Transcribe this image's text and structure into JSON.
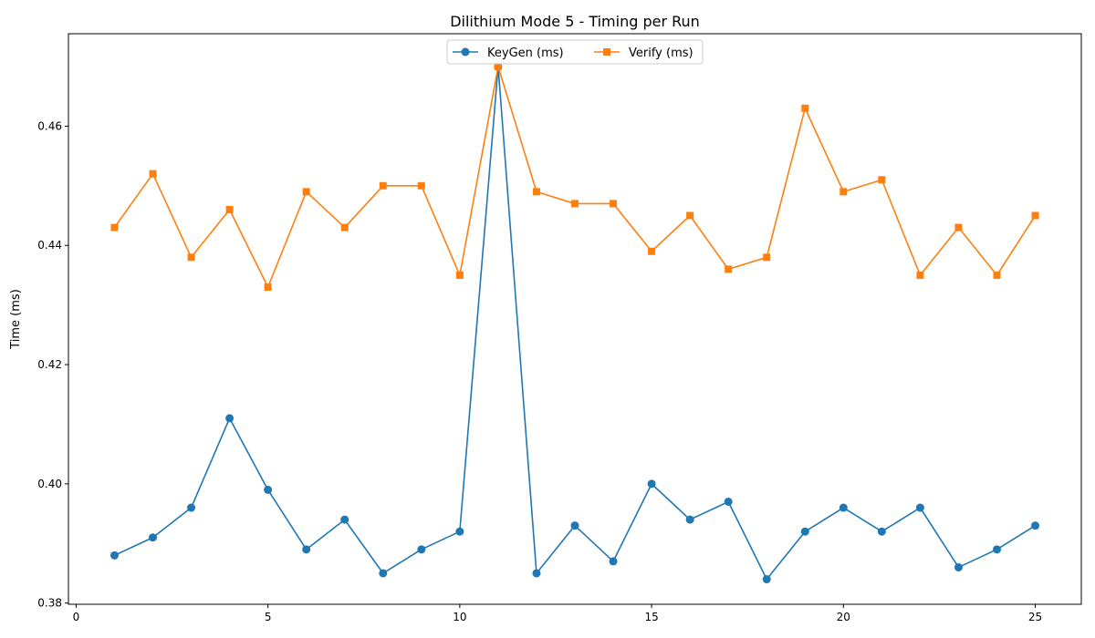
{
  "chart_data": {
    "type": "line",
    "title": "Dilithium Mode 5 - Timing per Run",
    "xlabel": "",
    "ylabel": "Time (ms)",
    "xlim": [
      -0.2,
      26.2
    ],
    "ylim": [
      0.3798,
      0.4755
    ],
    "xticks": [
      0,
      5,
      10,
      15,
      20,
      25
    ],
    "yticks": [
      0.38,
      0.4,
      0.42,
      0.44,
      0.46
    ],
    "x": [
      1,
      2,
      3,
      4,
      5,
      6,
      7,
      8,
      9,
      10,
      11,
      12,
      13,
      14,
      15,
      16,
      17,
      18,
      19,
      20,
      21,
      22,
      23,
      24,
      25
    ],
    "series": [
      {
        "name": "KeyGen (ms)",
        "color": "#1f77b4",
        "marker": "circle",
        "values": [
          0.388,
          0.391,
          0.396,
          0.411,
          0.399,
          0.389,
          0.394,
          0.385,
          0.389,
          0.392,
          0.47,
          0.385,
          0.393,
          0.387,
          0.4,
          0.394,
          0.397,
          0.384,
          0.392,
          0.396,
          0.392,
          0.396,
          0.386,
          0.389,
          0.393
        ]
      },
      {
        "name": "Verify (ms)",
        "color": "#ff7f0e",
        "marker": "square",
        "values": [
          0.443,
          0.452,
          0.438,
          0.446,
          0.433,
          0.449,
          0.443,
          0.45,
          0.45,
          0.435,
          0.47,
          0.449,
          0.447,
          0.447,
          0.439,
          0.445,
          0.436,
          0.438,
          0.463,
          0.449,
          0.451,
          0.435,
          0.443,
          0.435,
          0.445
        ]
      }
    ],
    "legend": "upper-center",
    "grid": false
  }
}
